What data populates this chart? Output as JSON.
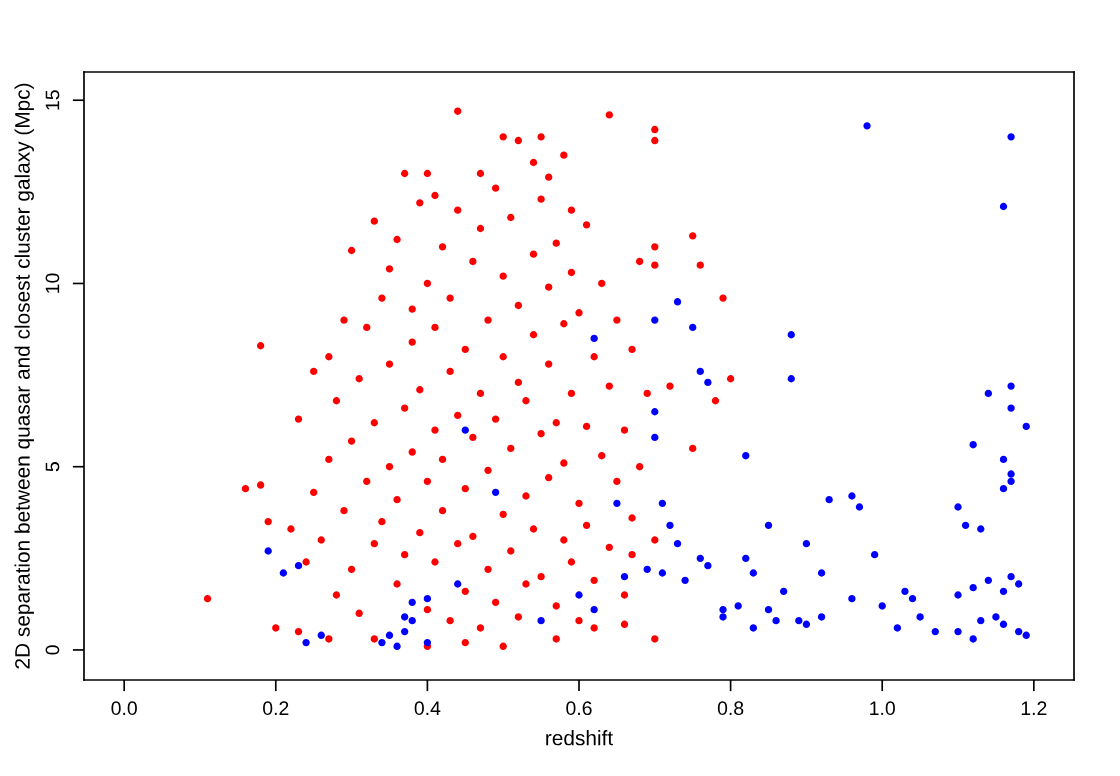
{
  "chart_data": {
    "type": "scatter",
    "xlabel": "redshift",
    "ylabel": "2D separation between quasar and closest cluster galaxy (Mpc)",
    "xlim": [
      -0.053,
      1.253
    ],
    "ylim": [
      -0.82,
      15.77
    ],
    "xticks": [
      {
        "value": 0,
        "label": "0.0"
      },
      {
        "value": 0.2,
        "label": "0.2"
      },
      {
        "value": 0.4,
        "label": "0.4"
      },
      {
        "value": 0.6,
        "label": "0.6"
      },
      {
        "value": 0.8,
        "label": "0.8"
      },
      {
        "value": 1.0,
        "label": "1.0"
      },
      {
        "value": 1.2,
        "label": "1.2"
      }
    ],
    "yticks": [
      0,
      5,
      10,
      15
    ],
    "marker": "circle",
    "grid": false,
    "series": [
      {
        "color": "#ff0000",
        "x": [
          0.11,
          0.16,
          0.18,
          0.18,
          0.19,
          0.2,
          0.23,
          0.25,
          0.27,
          0.29,
          0.3,
          0.33,
          0.37,
          0.4,
          0.41,
          0.44,
          0.47,
          0.5,
          0.52,
          0.54,
          0.55,
          0.56,
          0.58,
          0.59,
          0.64,
          0.7,
          0.7,
          0.7,
          0.75,
          0.76,
          0.7,
          0.79,
          0.8,
          0.78,
          0.72,
          0.75,
          0.7,
          0.7,
          0.66,
          0.62,
          0.57,
          0.5,
          0.45,
          0.4,
          0.33,
          0.27,
          0.23,
          0.22,
          0.24,
          0.25,
          0.26,
          0.27,
          0.28,
          0.28,
          0.29,
          0.3,
          0.3,
          0.31,
          0.31,
          0.32,
          0.32,
          0.33,
          0.33,
          0.34,
          0.34,
          0.35,
          0.35,
          0.35,
          0.36,
          0.36,
          0.36,
          0.37,
          0.37,
          0.38,
          0.38,
          0.38,
          0.39,
          0.39,
          0.39,
          0.4,
          0.4,
          0.4,
          0.41,
          0.41,
          0.41,
          0.42,
          0.42,
          0.42,
          0.43,
          0.43,
          0.43,
          0.44,
          0.44,
          0.44,
          0.45,
          0.45,
          0.45,
          0.46,
          0.46,
          0.46,
          0.47,
          0.47,
          0.47,
          0.48,
          0.48,
          0.48,
          0.49,
          0.49,
          0.49,
          0.5,
          0.5,
          0.5,
          0.51,
          0.51,
          0.51,
          0.52,
          0.52,
          0.52,
          0.53,
          0.53,
          0.53,
          0.54,
          0.54,
          0.54,
          0.55,
          0.55,
          0.55,
          0.56,
          0.56,
          0.56,
          0.57,
          0.57,
          0.57,
          0.58,
          0.58,
          0.58,
          0.59,
          0.59,
          0.59,
          0.6,
          0.6,
          0.6,
          0.61,
          0.61,
          0.61,
          0.62,
          0.62,
          0.63,
          0.63,
          0.64,
          0.64,
          0.65,
          0.65,
          0.66,
          0.66,
          0.67,
          0.67,
          0.68,
          0.68,
          0.67,
          0.69
        ],
        "values": [
          1.4,
          4.4,
          8.3,
          4.5,
          3.5,
          0.6,
          6.3,
          7.6,
          8.0,
          9.0,
          10.9,
          11.7,
          13.0,
          13.0,
          12.4,
          14.7,
          13.0,
          14.0,
          13.9,
          13.3,
          14.0,
          12.9,
          13.5,
          12.0,
          14.6,
          14.2,
          13.9,
          11.0,
          11.3,
          10.5,
          10.5,
          9.6,
          7.4,
          6.8,
          7.2,
          5.5,
          3.0,
          0.3,
          0.7,
          0.6,
          0.3,
          0.1,
          0.2,
          0.1,
          0.3,
          0.3,
          0.5,
          3.3,
          2.4,
          4.3,
          3.0,
          5.2,
          1.5,
          6.8,
          3.8,
          2.2,
          5.7,
          7.4,
          1.0,
          4.6,
          8.8,
          2.9,
          6.2,
          9.6,
          3.5,
          5.0,
          7.8,
          10.4,
          1.8,
          4.1,
          11.2,
          6.6,
          2.6,
          8.4,
          9.3,
          5.4,
          3.2,
          12.2,
          7.1,
          1.1,
          4.6,
          10.0,
          6.0,
          2.4,
          8.8,
          3.8,
          11.0,
          5.2,
          7.6,
          0.8,
          9.6,
          2.9,
          6.4,
          12.0,
          4.4,
          8.2,
          1.6,
          10.6,
          5.8,
          3.1,
          7.0,
          11.5,
          0.6,
          2.2,
          9.0,
          4.9,
          6.3,
          12.6,
          1.3,
          3.7,
          8.0,
          10.2,
          5.5,
          2.7,
          11.8,
          7.3,
          0.9,
          9.4,
          4.2,
          6.8,
          1.8,
          10.8,
          3.3,
          8.6,
          5.9,
          12.3,
          2.0,
          7.8,
          4.7,
          9.9,
          1.2,
          6.2,
          11.1,
          3.0,
          8.9,
          5.1,
          10.3,
          2.4,
          7.0,
          4.0,
          9.2,
          0.8,
          6.1,
          11.6,
          3.4,
          8.0,
          1.9,
          5.3,
          10.0,
          2.8,
          7.2,
          4.6,
          9.0,
          1.5,
          6.0,
          3.6,
          8.2,
          5.0,
          10.6,
          2.6,
          7.0
        ]
      },
      {
        "color": "#0000ff",
        "x": [
          0.98,
          1.17,
          1.16,
          0.73,
          0.75,
          0.7,
          0.88,
          0.76,
          0.88,
          0.77,
          1.17,
          1.14,
          1.17,
          0.7,
          1.19,
          0.7,
          1.12,
          0.82,
          1.16,
          0.45,
          1.17,
          1.17,
          1.16,
          0.93,
          0.96,
          0.97,
          0.71,
          0.65,
          0.49,
          0.72,
          0.85,
          1.1,
          1.11,
          1.13,
          0.99,
          0.9,
          0.73,
          0.82,
          0.76,
          0.77,
          0.71,
          0.83,
          0.92,
          0.69,
          0.74,
          0.66,
          1.17,
          1.18,
          1.14,
          1.16,
          1.03,
          1.04,
          1.1,
          1.12,
          0.87,
          0.79,
          0.81,
          0.85,
          0.96,
          1.0,
          0.92,
          0.79,
          0.83,
          0.86,
          0.89,
          0.9,
          1.02,
          1.05,
          1.07,
          1.1,
          1.12,
          1.13,
          1.15,
          1.16,
          1.18,
          1.19,
          0.62,
          0.6,
          0.55,
          0.37,
          0.38,
          0.4,
          0.35,
          0.34,
          0.36,
          0.37,
          0.38,
          0.24,
          0.23,
          0.26,
          0.19,
          0.21,
          0.62,
          0.44,
          0.4
        ],
        "values": [
          14.3,
          14.0,
          12.1,
          9.5,
          8.8,
          9.0,
          8.6,
          7.6,
          7.4,
          7.3,
          7.2,
          7.0,
          6.6,
          6.5,
          6.1,
          5.8,
          5.6,
          5.3,
          5.2,
          6.0,
          4.8,
          4.6,
          4.4,
          4.1,
          4.2,
          3.9,
          4.0,
          4.0,
          4.3,
          3.4,
          3.4,
          3.9,
          3.4,
          3.3,
          2.6,
          2.9,
          2.9,
          2.5,
          2.5,
          2.3,
          2.1,
          2.1,
          2.1,
          2.2,
          1.9,
          2.0,
          2.0,
          1.8,
          1.9,
          1.6,
          1.6,
          1.4,
          1.5,
          1.7,
          1.6,
          1.1,
          1.2,
          1.1,
          1.4,
          1.2,
          0.9,
          0.9,
          0.6,
          0.8,
          0.8,
          0.7,
          0.6,
          0.9,
          0.5,
          0.5,
          0.3,
          0.8,
          0.9,
          0.7,
          0.5,
          0.4,
          1.1,
          1.5,
          0.8,
          0.5,
          1.3,
          1.4,
          0.4,
          0.2,
          0.1,
          0.9,
          0.8,
          0.2,
          2.3,
          0.4,
          2.7,
          2.1,
          8.5,
          1.8,
          0.2
        ]
      }
    ]
  }
}
